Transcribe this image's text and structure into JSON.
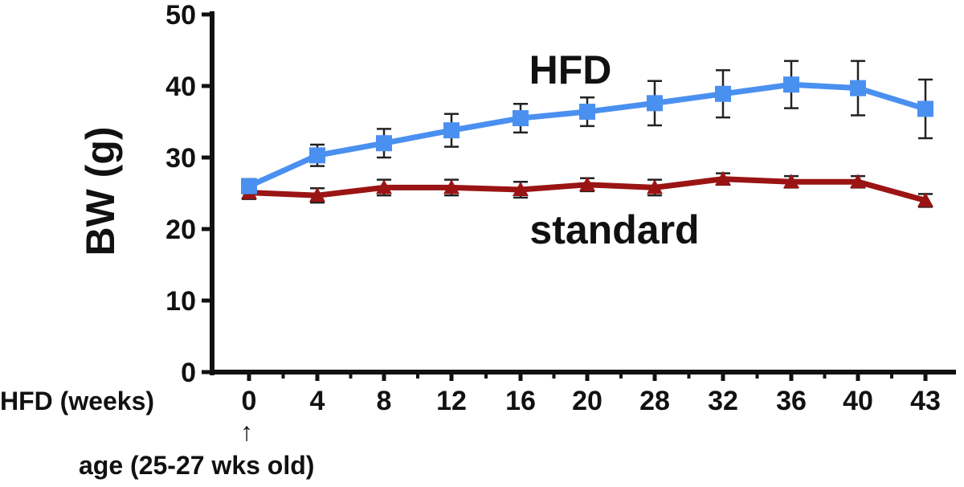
{
  "chart_data": {
    "type": "line",
    "title": "",
    "ylabel": "BW (g)",
    "xlabel": "HFD (weeks)",
    "ylim": [
      0,
      50
    ],
    "yticks": [
      0,
      10,
      20,
      30,
      40,
      50
    ],
    "categories": [
      "0",
      "4",
      "8",
      "12",
      "16",
      "20",
      "28",
      "32",
      "36",
      "40",
      "43"
    ],
    "series": [
      {
        "name": "HFD",
        "color": "#4a90f0",
        "marker": "square",
        "values": [
          26.0,
          30.3,
          32.0,
          33.8,
          35.5,
          36.4,
          37.6,
          38.9,
          40.2,
          39.7,
          36.8
        ],
        "errors": [
          1.0,
          1.5,
          2.0,
          2.3,
          2.0,
          2.0,
          3.1,
          3.3,
          3.3,
          3.8,
          4.1
        ]
      },
      {
        "name": "standard",
        "color": "#9b1414",
        "marker": "triangle",
        "values": [
          25.1,
          24.7,
          25.8,
          25.8,
          25.5,
          26.2,
          25.8,
          27.0,
          26.6,
          26.6,
          24.0
        ],
        "errors": [
          0.9,
          1.0,
          1.1,
          1.1,
          1.1,
          0.9,
          1.1,
          0.8,
          0.8,
          0.8,
          0.9
        ]
      }
    ],
    "annotation": "age (25-27 wks old)",
    "annotation_arrow": "↑"
  }
}
